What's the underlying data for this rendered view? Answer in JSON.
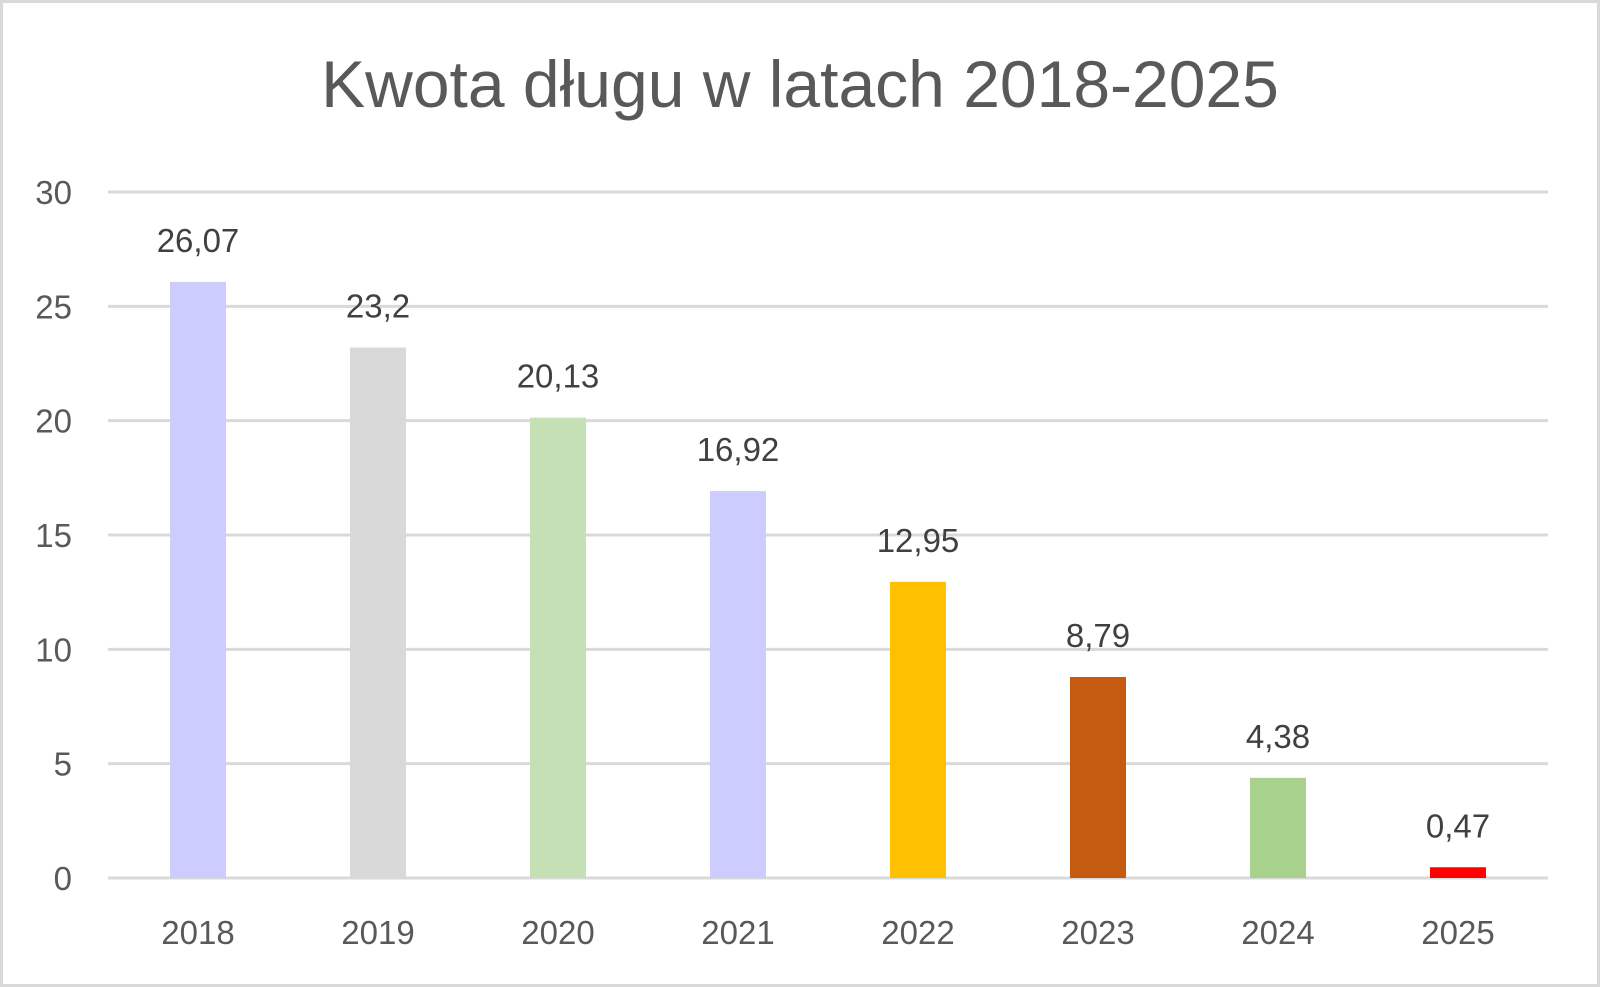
{
  "chart_data": {
    "type": "bar",
    "title": "Kwota długu w latach 2018-2025",
    "xlabel": "",
    "ylabel": "",
    "categories": [
      "2018",
      "2019",
      "2020",
      "2021",
      "2022",
      "2023",
      "2024",
      "2025"
    ],
    "values": [
      26.07,
      23.2,
      20.13,
      16.92,
      12.95,
      8.79,
      4.38,
      0.47
    ],
    "data_labels": [
      "26,07",
      "23,2",
      "20,13",
      "16,92",
      "12,95",
      "8,79",
      "4,38",
      "0,47"
    ],
    "bar_colors": [
      "#ccccff",
      "#d9d9d9",
      "#c5e0b4",
      "#ccccff",
      "#ffc000",
      "#c55a11",
      "#a9d18e",
      "#ff0000"
    ],
    "ylim": [
      0,
      30
    ],
    "yticks": [
      0,
      5,
      10,
      15,
      20,
      25,
      30
    ],
    "grid": true,
    "legend": "none"
  }
}
